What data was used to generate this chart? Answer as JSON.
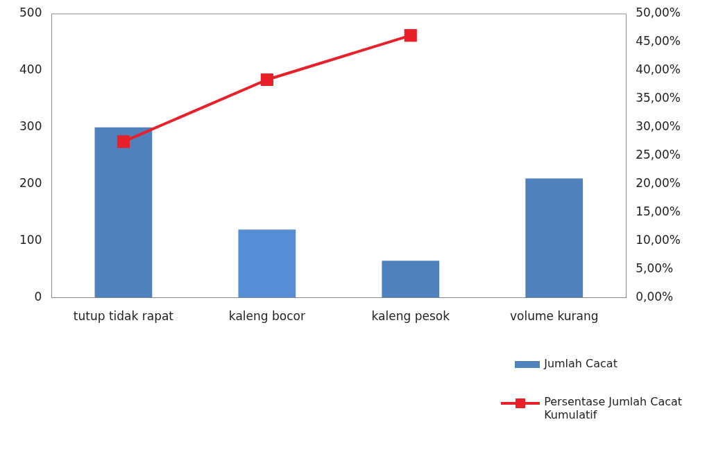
{
  "chart_data": {
    "type": "bar",
    "categories": [
      "tutup tidak rapat",
      "kaleng bocor",
      "kaleng pesok",
      "volume kurang"
    ],
    "series": [
      {
        "name": "Jumlah Cacat",
        "color": "#4f81bd",
        "colors": [
          "#4f81bd",
          "#558ed5",
          "#4f81bd",
          "#4f81bd"
        ],
        "values": [
          300,
          120,
          65,
          210
        ]
      },
      {
        "name": "Persentase Jumlah Cacat Kumulatif",
        "type": "line",
        "axis": "y2",
        "color": "#e8202a",
        "marker": "square",
        "values": [
          27.5,
          38.4,
          46.2,
          null
        ]
      }
    ],
    "ylim": [
      0,
      500
    ],
    "yticks": [
      0,
      100,
      200,
      300,
      400,
      500
    ],
    "y2lim": [
      0,
      50
    ],
    "y2ticks": [
      {
        "value": 0,
        "label": "0,00%"
      },
      {
        "value": 5,
        "label": "5,00%"
      },
      {
        "value": 10,
        "label": "10,00%"
      },
      {
        "value": 15,
        "label": "15,00%"
      },
      {
        "value": 20,
        "label": "20,00%"
      },
      {
        "value": 25,
        "label": "25,00%"
      },
      {
        "value": 30,
        "label": "30,00%"
      },
      {
        "value": 35,
        "label": "35,00%"
      },
      {
        "value": 40,
        "label": "40,00%"
      },
      {
        "value": 45,
        "label": "45,00%"
      },
      {
        "value": 50,
        "label": "50,00%"
      }
    ],
    "grid": false,
    "legend": "bottom right"
  }
}
